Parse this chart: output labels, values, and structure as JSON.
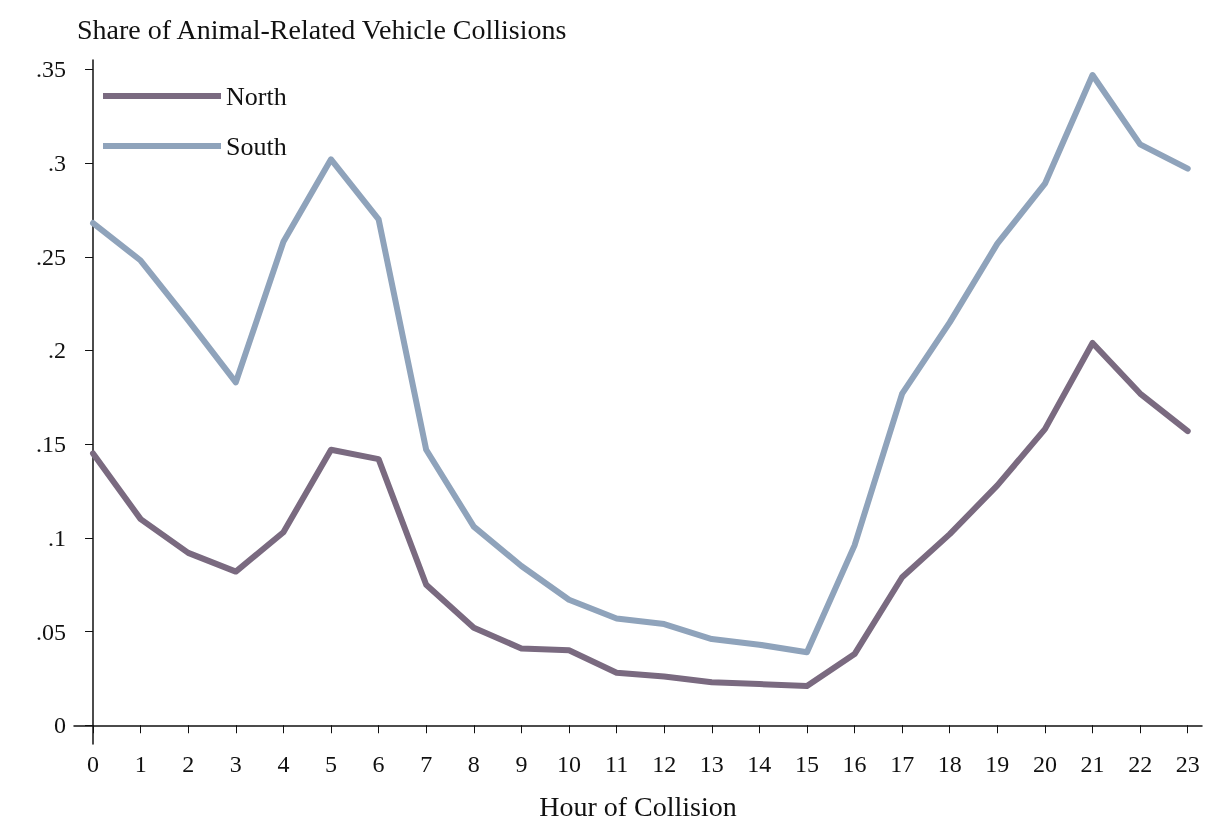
{
  "chart_data": {
    "type": "line",
    "title": "Share of Animal-Related Vehicle Collisions",
    "xlabel": "Hour of Collision",
    "x": [
      0,
      1,
      2,
      3,
      4,
      5,
      6,
      7,
      8,
      9,
      10,
      11,
      12,
      13,
      14,
      15,
      16,
      17,
      18,
      19,
      20,
      21,
      22,
      23
    ],
    "series": [
      {
        "name": "North",
        "color": "#7a6a80",
        "values": [
          0.145,
          0.11,
          0.092,
          0.082,
          0.103,
          0.147,
          0.142,
          0.075,
          0.052,
          0.041,
          0.04,
          0.028,
          0.026,
          0.023,
          0.022,
          0.021,
          0.038,
          0.079,
          0.102,
          0.128,
          0.158,
          0.204,
          0.177,
          0.157
        ]
      },
      {
        "name": "South",
        "color": "#8fa3bb",
        "values": [
          0.268,
          0.248,
          0.216,
          0.183,
          0.258,
          0.302,
          0.27,
          0.147,
          0.106,
          0.085,
          0.067,
          0.057,
          0.054,
          0.046,
          0.043,
          0.039,
          0.096,
          0.177,
          0.215,
          0.257,
          0.289,
          0.347,
          0.31,
          0.297
        ]
      }
    ],
    "xlim": [
      -0.4,
      23.3
    ],
    "xticks": [
      0,
      1,
      2,
      3,
      4,
      5,
      6,
      7,
      8,
      9,
      10,
      11,
      12,
      13,
      14,
      15,
      16,
      17,
      18,
      19,
      20,
      21,
      22,
      23
    ],
    "ylim": [
      -0.01,
      0.355
    ],
    "yticks": [
      0,
      {
        "value": 0.05,
        "label": ".05"
      },
      {
        "value": 0.1,
        "label": ".1"
      },
      {
        "value": 0.15,
        "label": ".15"
      },
      {
        "value": 0.2,
        "label": ".2"
      },
      {
        "value": 0.25,
        "label": ".25"
      },
      {
        "value": 0.3,
        "label": ".3"
      },
      {
        "value": 0.35,
        "label": ".35"
      }
    ],
    "grid": false,
    "legend": "top left",
    "marker": "none",
    "line_style": "solid"
  }
}
